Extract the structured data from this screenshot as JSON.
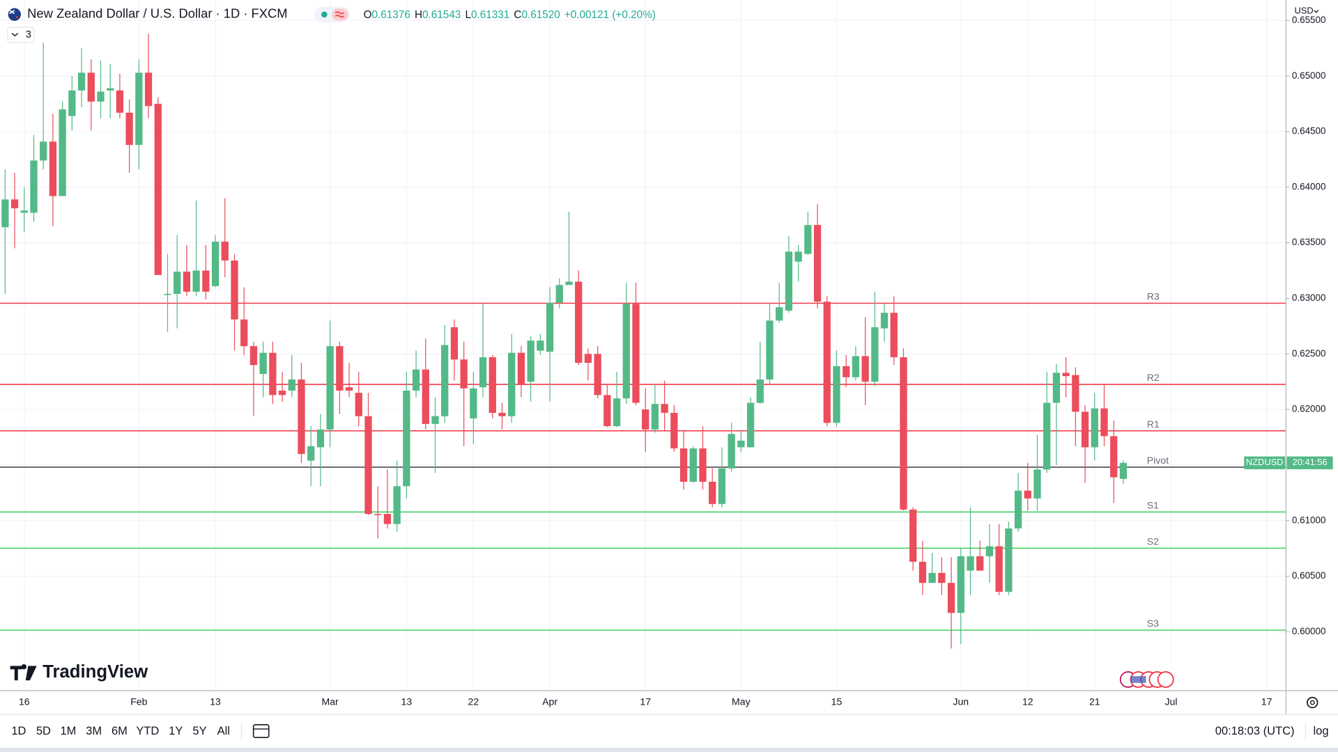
{
  "chart_data": {
    "type": "candlestick",
    "title": "New Zealand Dollar / U.S. Dollar · 1D · FXCM",
    "quote": [
      {
        "label": "O",
        "value": "0.61376"
      },
      {
        "label": "H",
        "value": "0.61543"
      },
      {
        "label": "L",
        "value": "0.61331"
      },
      {
        "label": "C",
        "value": "0.61520"
      }
    ],
    "change": "+0.00121 (+0.20%)",
    "indicator_count": "3",
    "currency": "USD",
    "symbol_tag": "NZDUSD",
    "countdown": "20:41:56",
    "categories": [
      null,
      null,
      "16",
      null,
      null,
      null,
      null,
      null,
      null,
      null,
      null,
      null,
      null,
      null,
      "Feb",
      null,
      null,
      null,
      null,
      null,
      null,
      null,
      "13",
      null,
      null,
      null,
      null,
      null,
      null,
      null,
      null,
      null,
      null,
      null,
      "Mar",
      null,
      null,
      null,
      null,
      null,
      null,
      null,
      "13",
      null,
      null,
      null,
      null,
      null,
      null,
      "22",
      null,
      null,
      null,
      null,
      null,
      null,
      null,
      "Apr",
      null,
      null,
      null,
      null,
      null,
      null,
      null,
      null,
      null,
      "17",
      null,
      null,
      null,
      null,
      null,
      null,
      null,
      null,
      null,
      "May",
      null,
      null,
      null,
      null,
      null,
      null,
      null,
      null,
      null,
      "15",
      null,
      null,
      null,
      null,
      null,
      null,
      null,
      null,
      null,
      null,
      null,
      null,
      "Jun",
      null,
      null,
      null,
      null,
      null,
      null,
      "12",
      null,
      null,
      null,
      null,
      null,
      null,
      "21",
      null,
      null,
      null,
      null,
      null,
      null,
      null,
      "Jul",
      null,
      null,
      null,
      null,
      null,
      null,
      null,
      null,
      null,
      "17",
      null
    ],
    "open": [
      0.6364,
      0.6389,
      0.6377,
      0.6377,
      0.6424,
      0.6441,
      0.6392,
      0.6464,
      0.6487,
      0.6503,
      0.6477,
      0.6487,
      0.6487,
      0.6467,
      0.6438,
      0.6503,
      0.6475,
      0.6303,
      0.6304,
      0.6324,
      0.6306,
      0.6325,
      0.6311,
      0.6351,
      0.6334,
      0.6281,
      0.6257,
      0.6232,
      0.6251,
      0.6217,
      0.6217,
      0.6227,
      0.6154,
      0.6166,
      0.6182,
      0.6257,
      0.622,
      0.6215,
      0.6194,
      0.6106,
      0.6106,
      0.6097,
      0.6131,
      0.6217,
      0.6236,
      0.6187,
      0.6194,
      0.6274,
      0.6245,
      0.6192,
      0.622,
      0.6247,
      0.6197,
      0.6194,
      0.6251,
      0.6225,
      0.6253,
      0.6252,
      0.6296,
      0.6312,
      0.6315,
      0.625,
      0.625,
      0.6213,
      0.6185,
      0.621,
      0.6295,
      0.62,
      0.6182,
      0.6205,
      0.6197,
      0.6165,
      0.6135,
      0.6165,
      0.6135,
      0.6115,
      0.6147,
      0.6166,
      0.6166,
      0.6206,
      0.6227,
      0.628,
      0.6289,
      0.6333,
      0.634,
      0.6366,
      0.6297,
      0.6188,
      0.6239,
      0.6229,
      0.6248,
      0.6225,
      0.6273,
      0.6287,
      0.6247,
      0.611,
      0.6063,
      0.6044,
      0.6053,
      0.6044,
      0.6017,
      0.6055,
      0.6068,
      0.6068,
      0.6077,
      0.6036,
      0.6093,
      0.6127,
      0.612,
      0.6146,
      0.6206,
      0.6233,
      0.6231,
      0.6198,
      0.6166,
      0.6201,
      0.6176,
      0.61376,
      null,
      null,
      null,
      null,
      null,
      null,
      null,
      null,
      null,
      null,
      null,
      null,
      null,
      null,
      null,
      null
    ],
    "high": [
      0.6416,
      0.6413,
      0.64,
      0.6447,
      0.653,
      0.6466,
      0.6477,
      0.65,
      0.6525,
      0.6515,
      0.6514,
      0.6511,
      0.6502,
      0.6479,
      0.6515,
      0.6538,
      0.6481,
      0.634,
      0.6357,
      0.6348,
      0.6388,
      0.6348,
      0.6357,
      0.639,
      0.634,
      0.631,
      0.6261,
      0.6261,
      0.6261,
      0.6234,
      0.6249,
      0.6242,
      0.6185,
      0.6196,
      0.628,
      0.6261,
      0.6242,
      0.6234,
      0.6215,
      0.6131,
      0.6146,
      0.6154,
      0.6234,
      0.6253,
      0.6264,
      0.6211,
      0.6276,
      0.6281,
      0.6261,
      0.6234,
      0.6295,
      0.6249,
      0.6206,
      0.6268,
      0.6257,
      0.6266,
      0.6268,
      0.631,
      0.6318,
      0.6378,
      0.6325,
      0.6255,
      0.6257,
      0.6223,
      0.6234,
      0.6314,
      0.6314,
      0.6219,
      0.6223,
      0.6226,
      0.6204,
      0.6181,
      0.6167,
      0.6185,
      0.6147,
      0.6166,
      0.6188,
      0.6181,
      0.6211,
      0.6261,
      0.6295,
      0.6314,
      0.6356,
      0.6348,
      0.6378,
      0.6385,
      0.6302,
      0.6253,
      0.6249,
      0.6257,
      0.6283,
      0.6306,
      0.6295,
      0.6302,
      0.6255,
      0.6112,
      0.6082,
      0.6071,
      0.6067,
      0.6067,
      0.6075,
      0.6112,
      0.6082,
      0.6097,
      0.6097,
      0.6099,
      0.6143,
      0.6152,
      0.6177,
      0.6234,
      0.6241,
      0.6247,
      0.6238,
      0.6204,
      0.6215,
      0.6223,
      0.619,
      0.61543,
      null,
      null,
      null,
      null,
      null,
      null,
      null,
      null,
      null,
      null,
      null,
      null,
      null,
      null,
      null,
      null
    ],
    "low": [
      0.6304,
      0.6345,
      0.636,
      0.6369,
      0.6416,
      0.6365,
      0.6392,
      0.6451,
      0.6472,
      0.6451,
      0.6462,
      0.6462,
      0.6462,
      0.6413,
      0.6416,
      0.6462,
      0.6321,
      0.627,
      0.6273,
      0.6302,
      0.6302,
      0.6299,
      0.631,
      0.6319,
      0.6253,
      0.6249,
      0.6194,
      0.6211,
      0.6205,
      0.6207,
      0.6211,
      0.6152,
      0.6131,
      0.6131,
      0.6166,
      0.6196,
      0.6211,
      0.6185,
      0.6105,
      0.6084,
      0.6093,
      0.609,
      0.612,
      0.6211,
      0.6182,
      0.6143,
      0.6188,
      0.6226,
      0.6167,
      0.6169,
      0.6211,
      0.6192,
      0.6182,
      0.6188,
      0.6211,
      0.6207,
      0.6249,
      0.6207,
      0.6291,
      0.6312,
      0.624,
      0.6226,
      0.621,
      0.6184,
      0.6184,
      0.6205,
      0.6204,
      0.6162,
      0.6179,
      0.6181,
      0.6162,
      0.6128,
      0.6134,
      0.6128,
      0.6112,
      0.6112,
      0.6144,
      0.6162,
      0.6166,
      0.6205,
      0.6223,
      0.6278,
      0.6287,
      0.6315,
      0.6339,
      0.6291,
      0.6185,
      0.6185,
      0.622,
      0.6226,
      0.6204,
      0.6221,
      0.6261,
      0.624,
      0.6109,
      0.6055,
      0.6033,
      0.6044,
      0.6033,
      0.5985,
      0.5989,
      0.6033,
      0.6055,
      0.6044,
      0.6033,
      0.6033,
      0.609,
      0.6109,
      0.6109,
      0.6143,
      0.615,
      0.6211,
      0.6167,
      0.6134,
      0.6154,
      0.6167,
      0.6116,
      0.61331,
      null,
      null,
      null,
      null,
      null,
      null,
      null,
      null,
      null,
      null,
      null,
      null,
      null,
      null,
      null,
      null
    ],
    "close": [
      0.6389,
      0.6381,
      0.6379,
      0.6424,
      0.6441,
      0.6392,
      0.647,
      0.6487,
      0.6503,
      0.6477,
      0.6486,
      0.6489,
      0.6467,
      0.6438,
      0.6503,
      0.6473,
      0.6321,
      0.6304,
      0.6324,
      0.6306,
      0.6325,
      0.6306,
      0.6351,
      0.6334,
      0.6281,
      0.6257,
      0.624,
      0.6251,
      0.6213,
      0.6213,
      0.6227,
      0.616,
      0.6167,
      0.6182,
      0.6257,
      0.6217,
      0.6217,
      0.6194,
      0.6106,
      0.6105,
      0.6097,
      0.6131,
      0.6217,
      0.6236,
      0.6187,
      0.6194,
      0.6258,
      0.6245,
      0.6219,
      0.6219,
      0.6247,
      0.6197,
      0.6194,
      0.6251,
      0.6222,
      0.6262,
      0.6262,
      0.6296,
      0.6312,
      0.6315,
      0.6242,
      0.6242,
      0.6213,
      0.6185,
      0.621,
      0.6295,
      0.6206,
      0.6182,
      0.6205,
      0.6197,
      0.6165,
      0.6135,
      0.6165,
      0.6135,
      0.6115,
      0.6147,
      0.6178,
      0.6172,
      0.6206,
      0.6227,
      0.628,
      0.6292,
      0.6342,
      0.6342,
      0.6366,
      0.6297,
      0.6188,
      0.6239,
      0.6229,
      0.6248,
      0.6225,
      0.6274,
      0.6287,
      0.6247,
      0.611,
      0.6063,
      0.6044,
      0.6053,
      0.6044,
      0.6017,
      0.6068,
      0.6068,
      0.6055,
      0.6077,
      0.6036,
      0.6093,
      0.6127,
      0.612,
      0.6146,
      0.6206,
      0.6233,
      0.623,
      0.6198,
      0.6166,
      0.6201,
      0.6176,
      0.6139,
      0.6152,
      null,
      null,
      null,
      null,
      null,
      null,
      null,
      null,
      null,
      null,
      null,
      null,
      null,
      null,
      null,
      null
    ],
    "up_color": "#53b987",
    "down_color": "#eb4d5c",
    "ylim": [
      0.59471,
      0.65684
    ],
    "yticks": [
      {
        "value": 0.6,
        "label": "0.60000"
      },
      {
        "value": 0.605,
        "label": "0.60500"
      },
      {
        "value": 0.61,
        "label": "0.61000"
      },
      {
        "value": 0.615,
        "label": "0.61500"
      },
      {
        "value": 0.62,
        "label": "0.62000"
      },
      {
        "value": 0.625,
        "label": "0.62500"
      },
      {
        "value": 0.63,
        "label": "0.63000"
      },
      {
        "value": 0.635,
        "label": "0.63500"
      },
      {
        "value": 0.64,
        "label": "0.64000"
      },
      {
        "value": 0.645,
        "label": "0.64500"
      },
      {
        "value": 0.65,
        "label": "0.65000"
      },
      {
        "value": 0.655,
        "label": "0.65500"
      }
    ],
    "grid": true,
    "levels": [
      {
        "name": "R3",
        "value": 0.62956,
        "color": "#f23645"
      },
      {
        "name": "R2",
        "value": 0.62226,
        "color": "#f23645"
      },
      {
        "name": "R1",
        "value": 0.61808,
        "color": "#f23645"
      },
      {
        "name": "Pivot",
        "value": 0.61481,
        "color": "#4a4a4a"
      },
      {
        "name": "S1",
        "value": 0.61078,
        "color": "#46d160"
      },
      {
        "name": "S2",
        "value": 0.60752,
        "color": "#46d160"
      },
      {
        "name": "S3",
        "value": 0.60015,
        "color": "#46d160"
      }
    ]
  },
  "toolbar": {
    "ranges": [
      "1D",
      "5D",
      "1M",
      "3M",
      "6M",
      "YTD",
      "1Y",
      "5Y",
      "All"
    ],
    "clock": "00:18:03 (UTC)",
    "scale": "log"
  },
  "branding": "TradingView"
}
